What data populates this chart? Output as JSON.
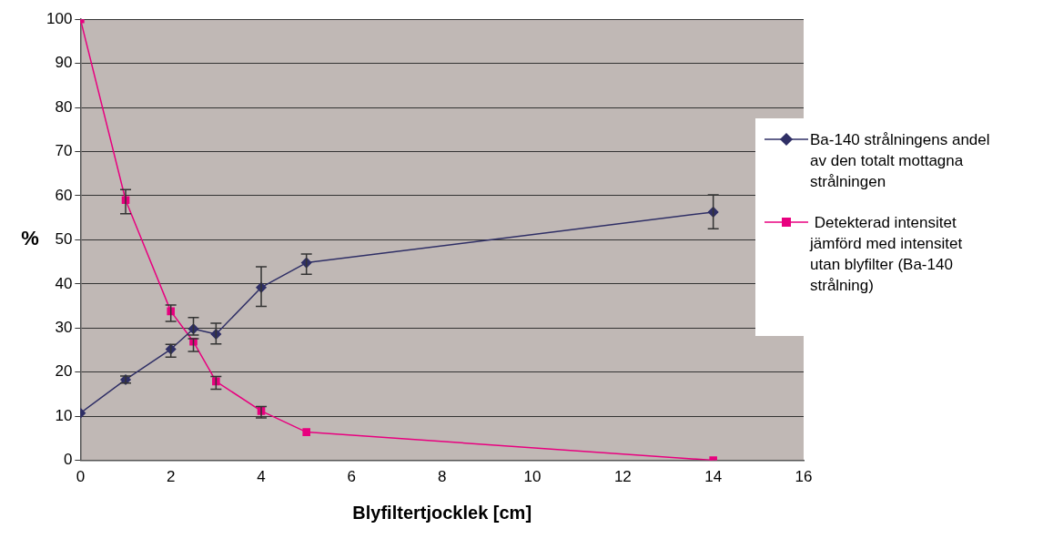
{
  "chart_data": {
    "type": "line",
    "xlabel": "Blyfiltertjocklek [cm]",
    "ylabel": "%",
    "x": [
      0,
      1,
      2,
      2.5,
      3,
      4,
      5,
      14
    ],
    "series": [
      {
        "name": "Ba-140 strålningens andel av den totalt mottagna strålningen",
        "color": "#2f2f66",
        "marker": "diamond",
        "values": [
          10.7,
          18.3,
          25.2,
          29.8,
          28.6,
          39.2,
          44.8,
          56.3
        ],
        "errors": [
          null,
          [
            17.5,
            19.1
          ],
          [
            23.4,
            26.3
          ],
          [
            28.4,
            32.4
          ],
          [
            26.4,
            31.1
          ],
          [
            34.9,
            43.9
          ],
          [
            42.2,
            46.8
          ],
          [
            52.5,
            60.2
          ]
        ]
      },
      {
        "name": " Detekterad intensitet jämförd med intensitet utan blyfilter (Ba-140 strålning)",
        "color": "#e8007f",
        "marker": "square",
        "values": [
          100,
          59.0,
          33.8,
          26.9,
          17.9,
          11.2,
          6.4,
          0
        ],
        "errors": [
          null,
          [
            55.9,
            61.4
          ],
          [
            31.5,
            35.2
          ],
          [
            24.7,
            27.6
          ],
          [
            16.1,
            19.0
          ],
          [
            9.6,
            12.2
          ],
          null,
          null
        ]
      }
    ],
    "xlim": [
      0,
      16
    ],
    "xticks": [
      0,
      2,
      4,
      6,
      8,
      10,
      12,
      14,
      16
    ],
    "ylim": [
      0,
      100
    ],
    "yticks": [
      0,
      10,
      20,
      30,
      40,
      50,
      60,
      70,
      80,
      90,
      100
    ],
    "grid": "y",
    "legend": "right",
    "line_style": "solid"
  }
}
